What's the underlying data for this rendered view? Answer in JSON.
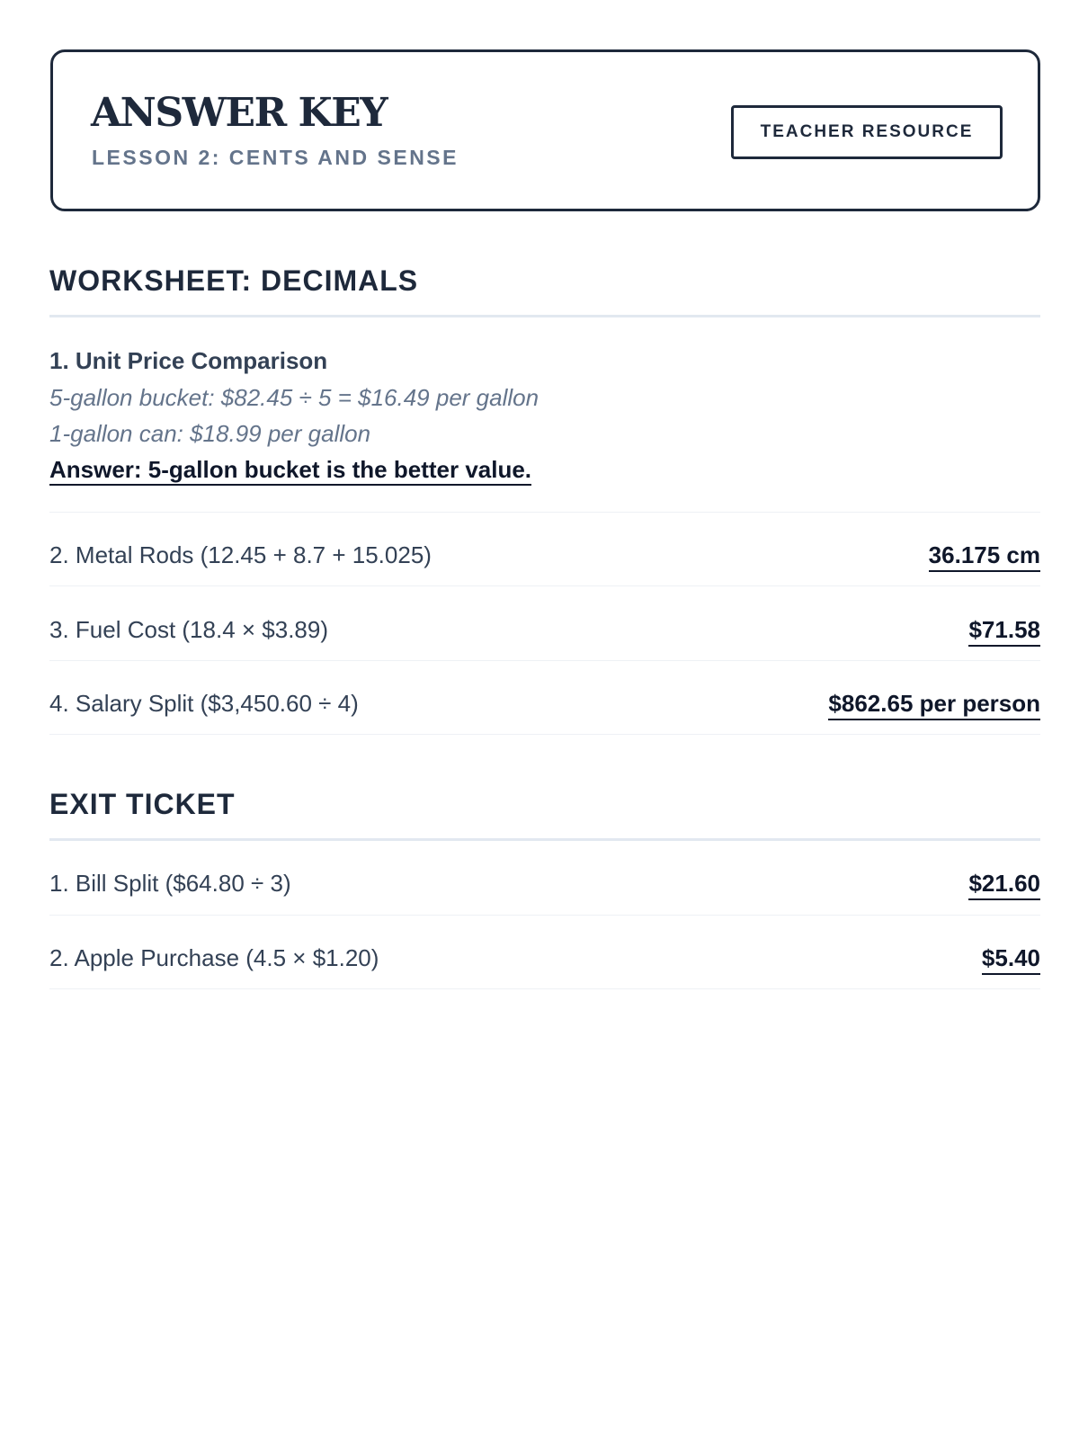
{
  "header": {
    "title": "ANSWER KEY",
    "subtitle": "LESSON 2: CENTS AND SENSE",
    "badge": "TEACHER RESOURCE"
  },
  "worksheet": {
    "heading": "WORKSHEET: DECIMALS",
    "q1": {
      "title": "1. Unit Price Comparison",
      "line1": "5-gallon bucket: $82.45 ÷ 5 = $16.49 per gallon",
      "line2": "1-gallon can: $18.99 per gallon",
      "answer": "Answer: 5-gallon bucket is the better value."
    },
    "rows": [
      {
        "q": "2. Metal Rods (12.45 + 8.7 + 15.025)",
        "a": "36.175 cm"
      },
      {
        "q": "3. Fuel Cost (18.4 × $3.89)",
        "a": "$71.58"
      },
      {
        "q": "4. Salary Split ($3,450.60 ÷ 4)",
        "a": "$862.65 per person"
      }
    ]
  },
  "exit": {
    "heading": "EXIT TICKET",
    "rows": [
      {
        "q": "1. Bill Split ($64.80 ÷ 3)",
        "a": "$21.60"
      },
      {
        "q": "2. Apple Purchase (4.5 × $1.20)",
        "a": "$5.40"
      }
    ]
  }
}
